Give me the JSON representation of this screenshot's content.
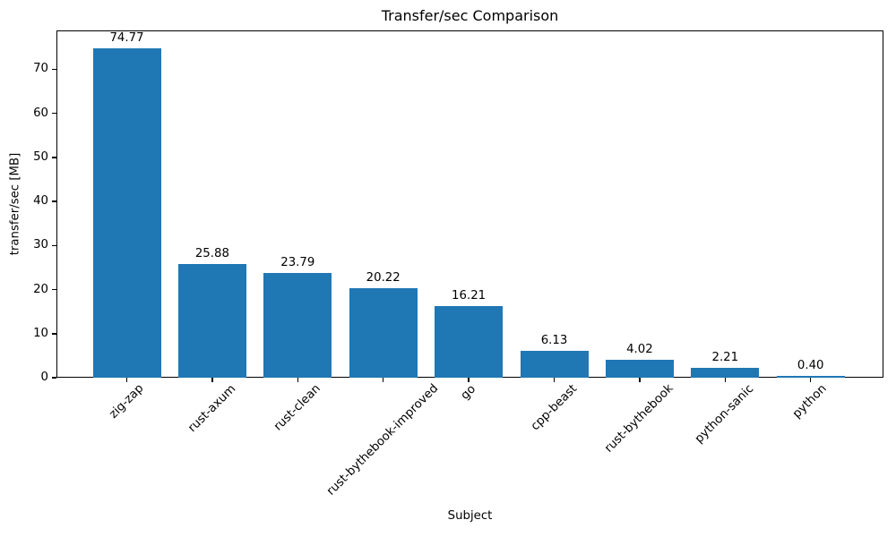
{
  "chart_data": {
    "type": "bar",
    "title": "Transfer/sec Comparison",
    "xlabel": "Subject",
    "ylabel": "transfer/sec [MB]",
    "categories": [
      "zig-zap",
      "rust-axum",
      "rust-clean",
      "rust-bythebook-improved",
      "go",
      "cpp-beast",
      "rust-bythebook",
      "python-sanic",
      "python"
    ],
    "values": [
      74.77,
      25.88,
      23.79,
      20.22,
      16.21,
      6.13,
      4.02,
      2.21,
      0.4
    ],
    "bar_labels": [
      "74.77",
      "25.88",
      "23.79",
      "20.22",
      "16.21",
      "6.13",
      "4.02",
      "2.21",
      "0.40"
    ],
    "yticks": [
      0,
      10,
      20,
      30,
      40,
      50,
      60,
      70
    ],
    "ylim": [
      0,
      78.8
    ],
    "xtick_rotation_deg": 45,
    "bar_color": "#1f77b4",
    "text_color": "#000000",
    "grid": false,
    "legend": null
  }
}
